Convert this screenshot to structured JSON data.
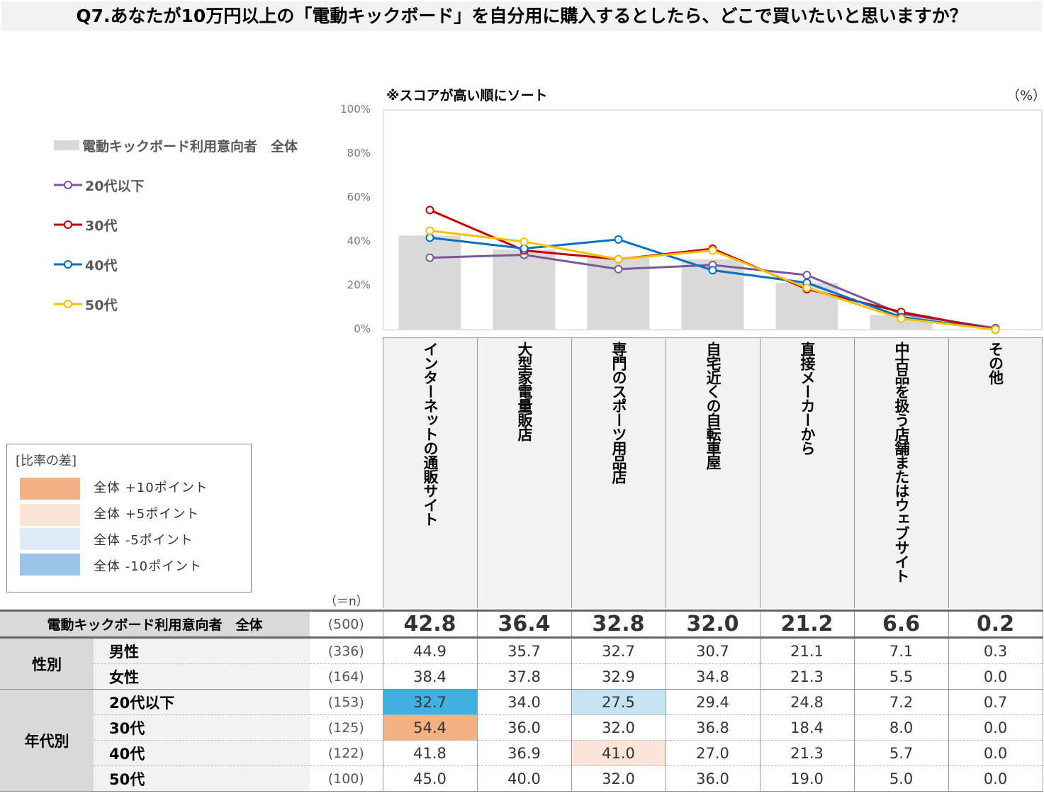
{
  "title": "Q7.あなたが10万円以上の「電動キックボード」を自分用に購入するとしたら、どこで買いたいと思いますか？",
  "note": "※スコアが高い順にソート",
  "unit": "（%）",
  "n_label": "（＝n）",
  "legend": {
    "total": "電動キックボード利用意向者　全体",
    "s20": "20代以下",
    "s30": "30代",
    "s40": "40代",
    "s50": "50代"
  },
  "diff_legend": {
    "title": "[比率の差]",
    "items": [
      {
        "label": "全体 +10ポイント",
        "color": "#f4b183"
      },
      {
        "label": "全体 +5ポイント",
        "color": "#fbe5d6"
      },
      {
        "label": "全体 -5ポイント",
        "color": "#deebf7"
      },
      {
        "label": "全体 -10ポイント",
        "color": "#9dc3e6"
      }
    ]
  },
  "chart_data": {
    "type": "bar+line",
    "ylim": [
      0,
      100
    ],
    "yticks": [
      "0%",
      "20%",
      "40%",
      "60%",
      "80%",
      "100%"
    ],
    "categories": [
      "インターネットの通販サイト",
      "大型家電量販店",
      "専門のスポーツ用品店",
      "自宅近くの自転車屋",
      "直接メーカーから",
      "中古品を扱う店舗またはウェブサイト",
      "その他"
    ],
    "bars": {
      "name": "電動キックボード利用意向者　全体",
      "values": [
        42.8,
        36.4,
        32.8,
        32.0,
        21.2,
        6.6,
        0.2
      ],
      "color": "#d9d9d9"
    },
    "series": [
      {
        "name": "20代以下",
        "values": [
          32.7,
          34.0,
          27.5,
          29.4,
          24.8,
          7.2,
          0.7
        ],
        "color": "#7a579b"
      },
      {
        "name": "30代",
        "values": [
          54.4,
          36.0,
          32.0,
          36.8,
          18.4,
          8.0,
          0.0
        ],
        "color": "#c00000"
      },
      {
        "name": "40代",
        "values": [
          41.8,
          36.9,
          41.0,
          27.0,
          21.3,
          5.7,
          0.0
        ],
        "color": "#0070c0"
      },
      {
        "name": "50代",
        "values": [
          45.0,
          40.0,
          32.0,
          36.0,
          19.0,
          5.0,
          0.0
        ],
        "color": "#f5c000"
      }
    ]
  },
  "table": {
    "total": {
      "label": "電動キックボード利用意向者　全体",
      "n": "(500)",
      "values": [
        "42.8",
        "36.4",
        "32.8",
        "32.0",
        "21.2",
        "6.6",
        "0.2"
      ]
    },
    "gender": {
      "label": "性別",
      "rows": [
        {
          "label": "男性",
          "n": "(336)",
          "values": [
            "44.9",
            "35.7",
            "32.7",
            "30.7",
            "21.1",
            "7.1",
            "0.3"
          ]
        },
        {
          "label": "女性",
          "n": "(164)",
          "values": [
            "38.4",
            "37.8",
            "32.9",
            "34.8",
            "21.3",
            "5.5",
            "0.0"
          ]
        }
      ]
    },
    "age": {
      "label": "年代別",
      "rows": [
        {
          "label": "20代以下",
          "n": "(153)",
          "values": [
            "32.7",
            "34.0",
            "27.5",
            "29.4",
            "24.8",
            "7.2",
            "0.7"
          ]
        },
        {
          "label": "30代",
          "n": "(125)",
          "values": [
            "54.4",
            "36.0",
            "32.0",
            "36.8",
            "18.4",
            "8.0",
            "0.0"
          ]
        },
        {
          "label": "40代",
          "n": "(122)",
          "values": [
            "41.8",
            "36.9",
            "41.0",
            "27.0",
            "21.3",
            "5.7",
            "0.0"
          ]
        },
        {
          "label": "50代",
          "n": "(100)",
          "values": [
            "45.0",
            "40.0",
            "32.0",
            "36.0",
            "19.0",
            "5.0",
            "0.0"
          ]
        }
      ]
    },
    "highlights": {
      "age.0.0": "#41b0e0",
      "age.0.2": "#c5e3f3",
      "age.1.0": "#f4b183",
      "age.2.2": "#fbe5d6"
    }
  }
}
